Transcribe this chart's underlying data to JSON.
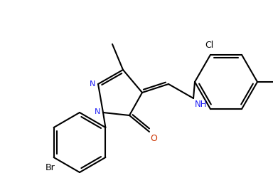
{
  "background": "#ffffff",
  "lc": "#000000",
  "N_color": "#1e1ef5",
  "O_color": "#cc3300",
  "lw": 1.5,
  "figsize": [
    3.84,
    2.71
  ],
  "dpi": 100,
  "xlim": [
    0,
    384
  ],
  "ylim": [
    0,
    271
  ]
}
